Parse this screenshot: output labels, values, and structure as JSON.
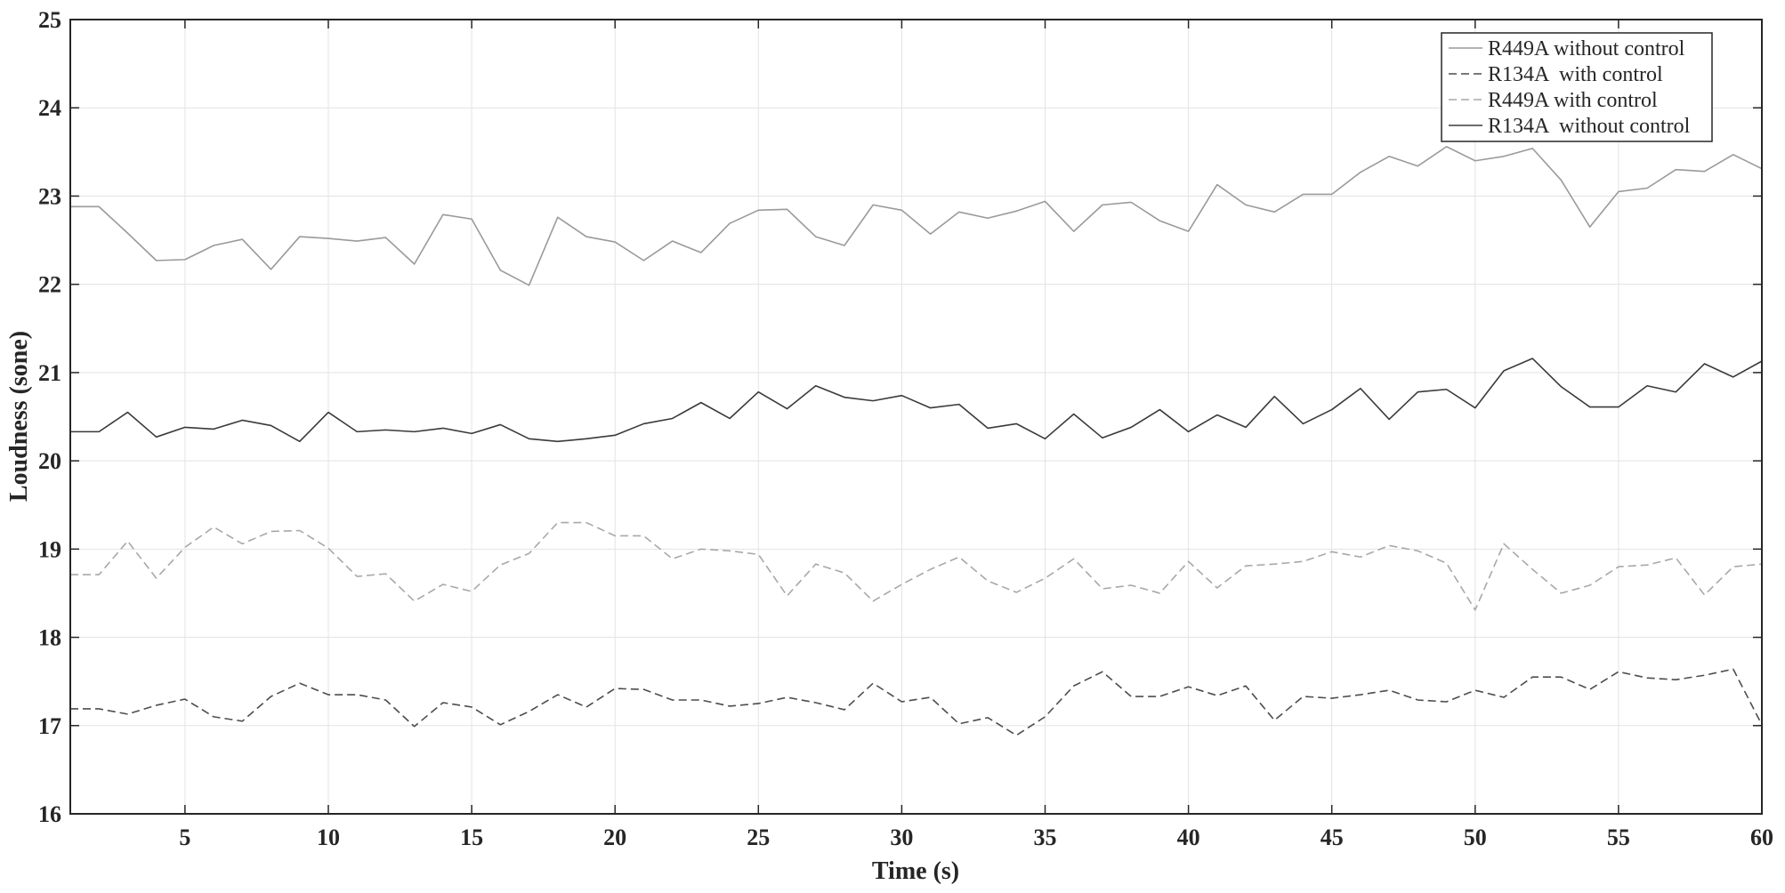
{
  "chart_data": {
    "type": "line",
    "xlabel": "Time (s)",
    "ylabel": "Loudness (sone)",
    "xlim": [
      1,
      60
    ],
    "ylim": [
      16,
      25
    ],
    "xticks": [
      5,
      10,
      15,
      20,
      25,
      30,
      35,
      40,
      45,
      50,
      55,
      60
    ],
    "yticks": [
      16,
      17,
      18,
      19,
      20,
      21,
      22,
      23,
      24,
      25
    ],
    "grid": true,
    "legend_position": "top-right",
    "x": [
      1,
      2,
      3,
      4,
      5,
      6,
      7,
      8,
      9,
      10,
      11,
      12,
      13,
      14,
      15,
      16,
      17,
      18,
      19,
      20,
      21,
      22,
      23,
      24,
      25,
      26,
      27,
      28,
      29,
      30,
      31,
      32,
      33,
      34,
      35,
      36,
      37,
      38,
      39,
      40,
      41,
      42,
      43,
      44,
      45,
      46,
      47,
      48,
      49,
      50,
      51,
      52,
      53,
      54,
      55,
      56,
      57,
      58,
      59,
      60
    ],
    "series": [
      {
        "name": "R449A without control",
        "color": "#9a9a9a",
        "dash": "solid",
        "values": [
          22.88,
          22.88,
          22.58,
          22.27,
          22.28,
          22.44,
          22.51,
          22.17,
          22.54,
          22.52,
          22.49,
          22.53,
          22.23,
          22.79,
          22.74,
          22.16,
          21.99,
          22.76,
          22.54,
          22.48,
          22.27,
          22.49,
          22.36,
          22.69,
          22.84,
          22.85,
          22.54,
          22.44,
          22.9,
          22.84,
          22.57,
          22.82,
          22.75,
          22.83,
          22.94,
          22.6,
          22.9,
          22.93,
          22.72,
          22.6,
          23.13,
          22.9,
          22.82,
          23.02,
          23.02,
          23.27,
          23.45,
          23.34,
          23.56,
          23.4,
          23.45,
          23.54,
          23.18,
          22.65,
          23.05,
          23.09,
          23.3,
          23.28,
          23.47,
          23.31
        ]
      },
      {
        "name": "R134A  with control",
        "color": "#4d4d4d",
        "dash": "dashed",
        "values": [
          17.19,
          17.19,
          17.13,
          17.23,
          17.3,
          17.1,
          17.05,
          17.33,
          17.48,
          17.35,
          17.35,
          17.29,
          16.99,
          17.26,
          17.21,
          17.01,
          17.16,
          17.35,
          17.21,
          17.42,
          17.41,
          17.29,
          17.29,
          17.22,
          17.25,
          17.32,
          17.26,
          17.18,
          17.48,
          17.27,
          17.32,
          17.02,
          17.09,
          16.89,
          17.1,
          17.45,
          17.61,
          17.33,
          17.33,
          17.44,
          17.34,
          17.45,
          17.06,
          17.33,
          17.31,
          17.35,
          17.4,
          17.29,
          17.27,
          17.4,
          17.32,
          17.55,
          17.55,
          17.41,
          17.61,
          17.54,
          17.52,
          17.57,
          17.64,
          17.01
        ]
      },
      {
        "name": "R449A with control",
        "color": "#a8a8a8",
        "dash": "dashed",
        "values": [
          18.71,
          18.71,
          19.09,
          18.67,
          19.02,
          19.25,
          19.06,
          19.2,
          19.21,
          19.01,
          18.69,
          18.72,
          18.41,
          18.6,
          18.52,
          18.82,
          18.95,
          19.3,
          19.3,
          19.15,
          19.15,
          18.89,
          19.0,
          18.98,
          18.94,
          18.47,
          18.83,
          18.73,
          18.41,
          18.6,
          18.77,
          18.91,
          18.64,
          18.51,
          18.67,
          18.89,
          18.55,
          18.59,
          18.5,
          18.86,
          18.56,
          18.81,
          18.83,
          18.86,
          18.97,
          18.91,
          19.04,
          18.98,
          18.84,
          18.31,
          19.06,
          18.77,
          18.5,
          18.59,
          18.8,
          18.82,
          18.9,
          18.48,
          18.8,
          18.83
        ]
      },
      {
        "name": "R134A  without control",
        "color": "#3a3a3a",
        "dash": "solid",
        "values": [
          20.33,
          20.33,
          20.55,
          20.27,
          20.38,
          20.36,
          20.46,
          20.4,
          20.22,
          20.55,
          20.33,
          20.35,
          20.33,
          20.37,
          20.31,
          20.41,
          20.25,
          20.22,
          20.25,
          20.29,
          20.42,
          20.48,
          20.66,
          20.48,
          20.78,
          20.59,
          20.85,
          20.72,
          20.68,
          20.74,
          20.6,
          20.64,
          20.37,
          20.42,
          20.25,
          20.53,
          20.26,
          20.38,
          20.58,
          20.33,
          20.52,
          20.38,
          20.73,
          20.42,
          20.58,
          20.82,
          20.47,
          20.78,
          20.81,
          20.6,
          21.02,
          21.16,
          20.84,
          20.61,
          20.61,
          20.85,
          20.78,
          21.1,
          20.95,
          21.13
        ]
      }
    ]
  }
}
